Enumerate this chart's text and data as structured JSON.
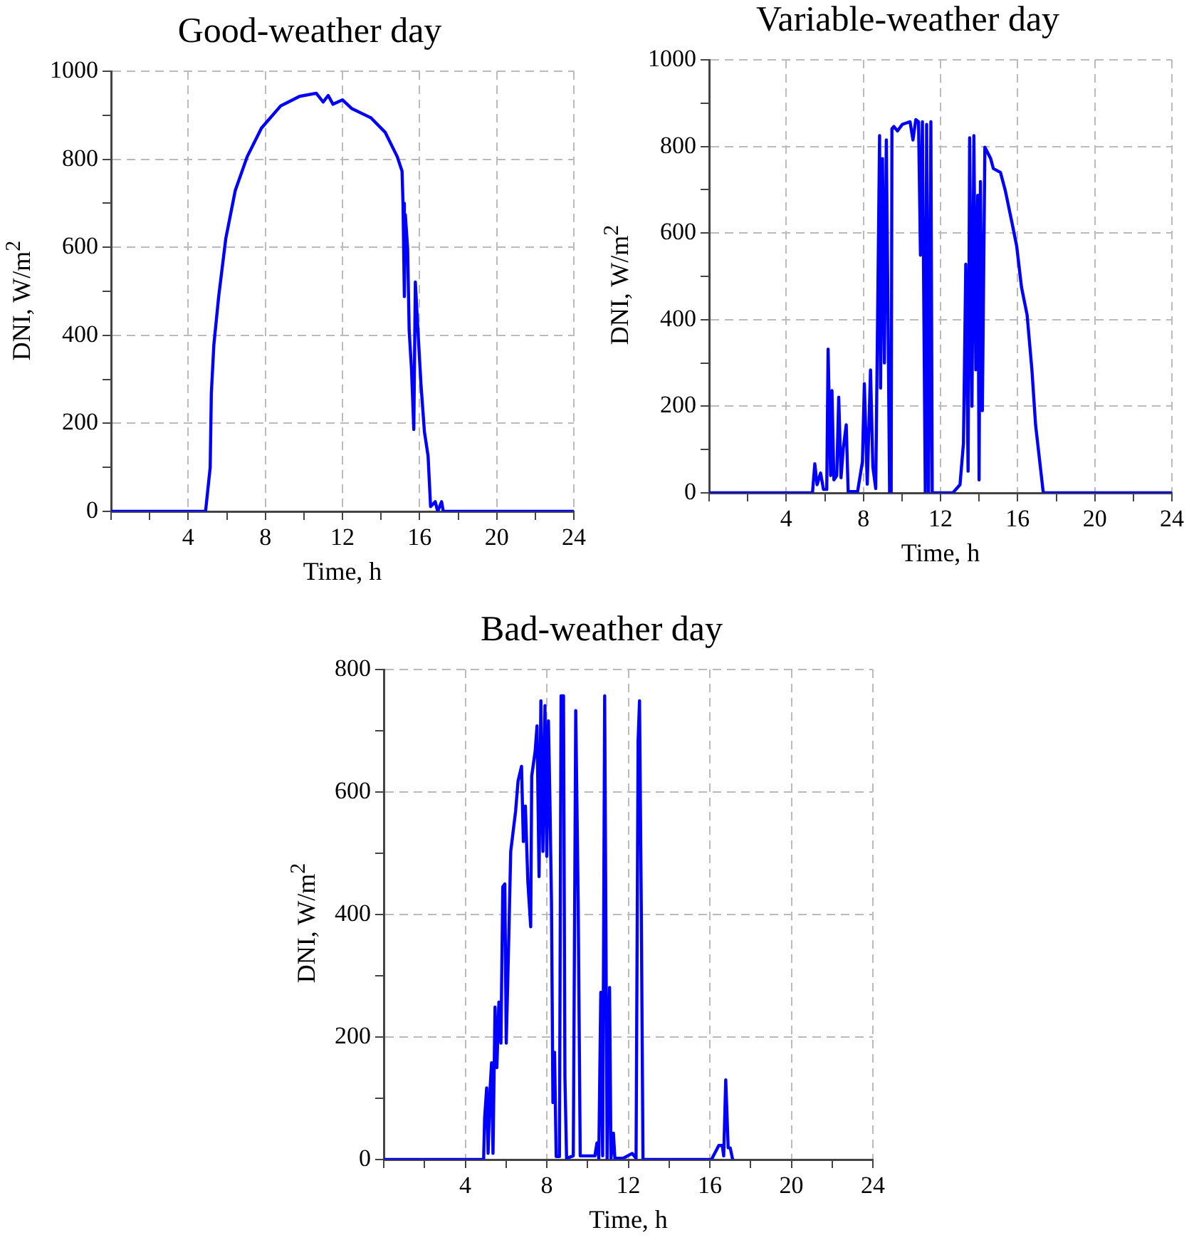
{
  "chart_data": [
    {
      "type": "line",
      "title": "Good-weather day",
      "xlabel": "Time, h",
      "ylabel": "DNI, W/m$^{2}$",
      "xlim": [
        0,
        24
      ],
      "ylim": [
        0,
        1000
      ],
      "xticks": [
        {
          "value": 0,
          "label": null
        },
        {
          "value": 2,
          "label": null
        },
        4,
        {
          "value": 6,
          "label": null
        },
        8,
        {
          "value": 10,
          "label": null
        },
        12,
        {
          "value": 14,
          "label": null
        },
        16,
        {
          "value": 18,
          "label": null
        },
        20,
        {
          "value": 22,
          "label": null
        },
        24
      ],
      "yticks": [
        0,
        {
          "value": 100,
          "label": null
        },
        200,
        {
          "value": 300,
          "label": null
        },
        400,
        {
          "value": 500,
          "label": null
        },
        600,
        {
          "value": 700,
          "label": null
        },
        800,
        {
          "value": 900,
          "label": null
        },
        1000
      ],
      "grid": true,
      "series": [
        {
          "color": "#0000ff",
          "x": [
            0,
            4.9,
            5.14,
            5.2,
            5.33,
            5.58,
            5.95,
            6.44,
            7.06,
            7.8,
            8.79,
            9.78,
            10.64,
            11.0,
            11.26,
            11.51,
            12.0,
            12.49,
            13.48,
            14.22,
            14.84,
            15.09,
            15.14,
            15.21,
            15.26,
            15.38,
            15.46,
            15.58,
            15.7,
            15.78,
            15.9,
            16.07,
            16.25,
            16.44,
            16.57,
            16.81,
            16.94,
            17.14,
            17.23,
            24
          ],
          "values": [
            0,
            0,
            100,
            268,
            378,
            488,
            620,
            729,
            806,
            871,
            921,
            943,
            950,
            930,
            945,
            925,
            935,
            915,
            894,
            861,
            806,
            773,
            700,
            488,
            674,
            597,
            411,
            323,
            186,
            521,
            422,
            290,
            181,
            126,
            11,
            22,
            0,
            22,
            0,
            0
          ]
        }
      ]
    },
    {
      "type": "line",
      "title": "Variable-weather day",
      "xlabel": "Time, h",
      "ylabel": "DNI, W/m$^{2}$",
      "xlim": [
        0,
        24
      ],
      "ylim": [
        0,
        1000
      ],
      "xticks": [
        {
          "value": 0,
          "label": null
        },
        {
          "value": 2,
          "label": null
        },
        4,
        {
          "value": 6,
          "label": null
        },
        8,
        {
          "value": 10,
          "label": null
        },
        12,
        {
          "value": 14,
          "label": null
        },
        16,
        {
          "value": 18,
          "label": null
        },
        20,
        {
          "value": 22,
          "label": null
        },
        24
      ],
      "yticks": [
        0,
        {
          "value": 100,
          "label": null
        },
        200,
        {
          "value": 300,
          "label": null
        },
        400,
        {
          "value": 500,
          "label": null
        },
        600,
        {
          "value": 700,
          "label": null
        },
        800,
        {
          "value": 900,
          "label": null
        },
        1000
      ],
      "grid": true,
      "series": [
        {
          "color": "#0000ff",
          "x": [
            0,
            5.36,
            5.48,
            5.6,
            5.78,
            5.93,
            6.1,
            6.17,
            6.3,
            6.37,
            6.47,
            6.62,
            6.72,
            6.84,
            6.96,
            7.11,
            7.21,
            7.7,
            7.95,
            8.05,
            8.2,
            8.37,
            8.49,
            8.64,
            8.84,
            8.89,
            8.99,
            9.09,
            9.19,
            9.28,
            9.36,
            9.44,
            9.48,
            9.58,
            9.77,
            10.02,
            10.42,
            10.57,
            10.72,
            10.86,
            10.96,
            11.06,
            11.21,
            11.28,
            11.38,
            11.5,
            11.57,
            11.65,
            12.64,
            13.01,
            13.19,
            13.31,
            13.43,
            13.51,
            13.63,
            13.73,
            13.83,
            13.93,
            14.0,
            14.07,
            14.17,
            14.3,
            14.6,
            14.74,
            15.11,
            15.36,
            15.71,
            15.95,
            16.2,
            16.49,
            16.74,
            16.93,
            17.33,
            24
          ],
          "values": [
            0,
            0,
            67,
            19,
            46,
            8,
            8,
            332,
            40,
            236,
            30,
            40,
            221,
            35,
            104,
            157,
            3,
            3,
            72,
            252,
            20,
            284,
            60,
            10,
            825,
            242,
            772,
            300,
            815,
            400,
            0,
            0,
            841,
            846,
            836,
            851,
            857,
            815,
            862,
            857,
            549,
            857,
            0,
            851,
            0,
            857,
            0,
            0,
            0,
            19,
            115,
            528,
            50,
            820,
            200,
            825,
            284,
            687,
            30,
            719,
            190,
            798,
            772,
            749,
            740,
            698,
            623,
            570,
            475,
            411,
            284,
            157,
            0,
            0
          ]
        }
      ]
    },
    {
      "type": "line",
      "title": "Bad-weather day",
      "xlabel": "Time, h",
      "ylabel": "DNI, W/m$^{2}$",
      "xlim": [
        0,
        24
      ],
      "ylim": [
        0,
        800
      ],
      "xticks": [
        {
          "value": 0,
          "label": null
        },
        {
          "value": 2,
          "label": null
        },
        4,
        {
          "value": 6,
          "label": null
        },
        8,
        {
          "value": 10,
          "label": null
        },
        12,
        {
          "value": 14,
          "label": null
        },
        16,
        {
          "value": 18,
          "label": null
        },
        20,
        {
          "value": 22,
          "label": null
        },
        24
      ],
      "yticks": [
        0,
        {
          "value": 100,
          "label": null
        },
        200,
        {
          "value": 300,
          "label": null
        },
        400,
        {
          "value": 500,
          "label": null
        },
        600,
        {
          "value": 700,
          "label": null
        },
        800
      ],
      "grid": true,
      "series": [
        {
          "color": "#0000ff",
          "x": [
            0,
            4.9,
            4.95,
            5.05,
            5.12,
            5.22,
            5.29,
            5.36,
            5.46,
            5.55,
            5.65,
            5.75,
            5.84,
            5.94,
            6.01,
            6.13,
            6.23,
            6.35,
            6.47,
            6.59,
            6.76,
            6.85,
            6.95,
            7.07,
            7.21,
            7.26,
            7.43,
            7.52,
            7.62,
            7.71,
            7.81,
            7.91,
            8.0,
            8.08,
            8.15,
            8.23,
            8.3,
            8.38,
            8.46,
            8.62,
            8.7,
            8.82,
            8.89,
            8.97,
            9.3,
            9.42,
            9.54,
            9.64,
            10.36,
            10.46,
            10.55,
            10.65,
            10.74,
            10.84,
            10.96,
            11.08,
            11.15,
            11.27,
            11.34,
            11.75,
            12.19,
            12.38,
            12.48,
            12.55,
            12.64,
            12.72,
            16.08,
            16.44,
            16.61,
            16.68,
            16.78,
            16.9,
            17.0,
            17.12
          ],
          "values": [
            0,
            0,
            68,
            117,
            10,
            117,
            158,
            10,
            249,
            150,
            257,
            190,
            445,
            450,
            190,
            355,
            503,
            536,
            569,
            618,
            642,
            519,
            577,
            454,
            380,
            626,
            667,
            708,
            462,
            749,
            503,
            741,
            495,
            716,
            593,
            421,
            93,
            175,
            5,
            5,
            757,
            757,
            134,
            2,
            6,
            733,
            421,
            6,
            6,
            27,
            2,
            273,
            6,
            757,
            2,
            281,
            2,
            43,
            2,
            2,
            10,
            2,
            683,
            749,
            396,
            0,
            0,
            23,
            23,
            6,
            130,
            19,
            19,
            0
          ]
        }
      ]
    }
  ]
}
